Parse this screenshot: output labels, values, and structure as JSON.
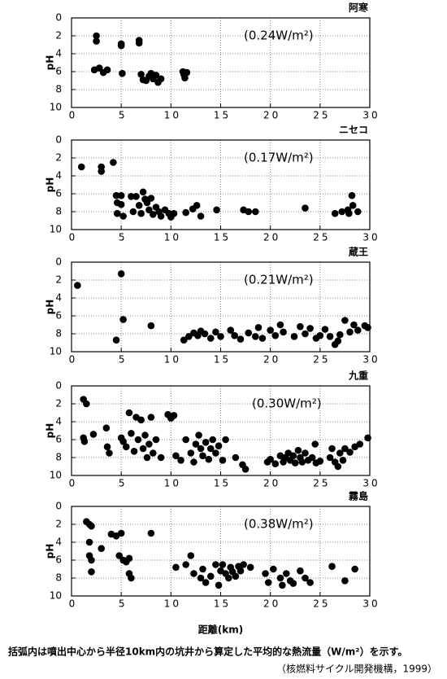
{
  "chart_data": [
    {
      "type": "scatter",
      "title": "阿寒",
      "annotation": "(0.24W/m²)",
      "ylabel": "pH",
      "color": "#000000",
      "grid": true,
      "xlim": [
        0,
        30
      ],
      "xticks": [
        0,
        5,
        10,
        15,
        20,
        25,
        30
      ],
      "ylim": [
        10,
        0
      ],
      "yticks": [
        0,
        2,
        4,
        6,
        8,
        10
      ],
      "x": [
        2.5,
        2.5,
        5,
        5,
        6.8,
        6.8,
        2.3,
        2.8,
        3.2,
        3.6,
        5.1,
        7,
        7.2,
        7.8,
        8,
        8.2,
        8.5,
        8.7,
        7.5,
        9,
        11.2,
        11.3,
        11.4,
        11.6
      ],
      "values": [
        2,
        2.6,
        2.9,
        3.1,
        2.5,
        2.8,
        5.8,
        5.6,
        6.1,
        5.8,
        6.2,
        6.3,
        6.9,
        6.5,
        6.2,
        6.8,
        6.4,
        7.2,
        7,
        6.8,
        6,
        6.3,
        6.7,
        6.1
      ]
    },
    {
      "type": "scatter",
      "title": "ニセコ",
      "annotation": "(0.17W/m²)",
      "ylabel": "pH",
      "color": "#000000",
      "grid": true,
      "xlim": [
        0,
        30
      ],
      "xticks": [
        0,
        5,
        10,
        15,
        20,
        25,
        30
      ],
      "ylim": [
        10,
        0
      ],
      "yticks": [
        0,
        2,
        4,
        6,
        8,
        10
      ],
      "x": [
        1,
        3,
        3,
        4.2,
        4.5,
        4.6,
        4.6,
        5,
        5.2,
        5,
        6,
        6.2,
        6.5,
        6.8,
        7,
        7.2,
        7.4,
        7.6,
        7.8,
        8,
        8.2,
        8.5,
        8.8,
        9,
        9.4,
        9.8,
        10,
        10.3,
        11.5,
        12.2,
        12.6,
        13,
        14.6,
        17.3,
        17.8,
        18.5,
        23.5,
        26.5,
        27.2,
        27.8,
        28.2,
        28.3,
        28.8,
        27.9
      ],
      "values": [
        3,
        3,
        3.5,
        2.5,
        6.2,
        7,
        8.2,
        6.2,
        8.5,
        7.2,
        6.3,
        8,
        6.3,
        7.3,
        8.2,
        5.8,
        6.6,
        7,
        7.8,
        6.5,
        8.3,
        7.5,
        8,
        8.5,
        7.8,
        8.2,
        8.6,
        8.2,
        8.1,
        7.7,
        7.3,
        8.5,
        7.8,
        7.8,
        8,
        8,
        7.6,
        8.2,
        8,
        7.8,
        6.2,
        7.3,
        8,
        8.2
      ]
    },
    {
      "type": "scatter",
      "title": "蔵王",
      "annotation": "(0.21W/m²)",
      "ylabel": "pH",
      "color": "#000000",
      "grid": true,
      "xlim": [
        0,
        30
      ],
      "xticks": [
        0,
        5,
        10,
        15,
        20,
        25,
        30
      ],
      "ylim": [
        10,
        0
      ],
      "yticks": [
        0,
        2,
        4,
        6,
        8,
        10
      ],
      "x": [
        0.6,
        5,
        4.5,
        5.2,
        8,
        11.3,
        11.8,
        12.3,
        12.7,
        13,
        13.4,
        14,
        14.5,
        15,
        16,
        16.4,
        17,
        17.8,
        18.5,
        18.8,
        19.2,
        20,
        20.5,
        21,
        21.3,
        22.4,
        23,
        23.5,
        24,
        24.6,
        25,
        25.5,
        26,
        26.5,
        27,
        27.5,
        28,
        28.4,
        28.8,
        29.5,
        29.8,
        26.8
      ],
      "values": [
        2.6,
        1.3,
        8.7,
        6.4,
        7.1,
        8.7,
        8.3,
        7.9,
        8.2,
        7.7,
        8,
        8.5,
        7.8,
        8.3,
        7.6,
        8.2,
        8.6,
        7.9,
        8.3,
        7.3,
        8.5,
        7.6,
        8.2,
        7,
        7.8,
        8.3,
        7.2,
        8,
        7.4,
        8.5,
        8.2,
        7.5,
        8.3,
        9.2,
        8.1,
        6.5,
        7.8,
        7,
        7.6,
        7.1,
        7.3,
        8.8
      ]
    },
    {
      "type": "scatter",
      "title": "九重",
      "annotation": "(0.30W/m²)",
      "ylabel": "pH",
      "color": "#000000",
      "grid": true,
      "xlim": [
        0,
        30
      ],
      "xticks": [
        0,
        5,
        10,
        15,
        20,
        25,
        30
      ],
      "ylim": [
        10,
        0
      ],
      "yticks": [
        0,
        2,
        4,
        6,
        8,
        10
      ],
      "x": [
        1.2,
        1.5,
        1.2,
        1.3,
        2.2,
        3.5,
        3.6,
        3.8,
        5,
        5.2,
        5.5,
        5.8,
        6,
        6.3,
        6.5,
        6.7,
        7,
        7.2,
        7.4,
        7.6,
        7.8,
        8,
        8.2,
        8.5,
        9,
        9.7,
        10,
        10.3,
        10.5,
        11,
        11.5,
        12,
        12.3,
        12.5,
        12.8,
        13,
        13.2,
        13.5,
        13.8,
        14,
        14.2,
        14.5,
        14.8,
        15.2,
        15.5,
        16.5,
        17.2,
        17.5,
        19.7,
        20,
        20.5,
        21,
        21.3,
        21.5,
        21.8,
        22,
        22.3,
        22.5,
        22.8,
        23,
        23.2,
        23.5,
        23.8,
        24.2,
        24.6,
        25,
        26,
        26.2,
        26.5,
        26.8,
        27,
        27.3,
        27.5,
        28,
        28.5,
        29,
        29.8,
        24.5
      ],
      "values": [
        1.5,
        2,
        5.8,
        6.2,
        5.4,
        4.7,
        6.8,
        7.5,
        5.8,
        6.2,
        6.8,
        3,
        5.3,
        7.3,
        3.5,
        6,
        3.8,
        7,
        5.5,
        8,
        6.5,
        3.5,
        7.5,
        6,
        8,
        3.2,
        3.6,
        3.3,
        7.8,
        8.3,
        6,
        7.5,
        8.5,
        6.5,
        5.5,
        7,
        7.8,
        6.3,
        8.2,
        7,
        6,
        7.5,
        6.7,
        8.3,
        6,
        8,
        8.8,
        9.3,
        8.5,
        8.2,
        8.7,
        7.8,
        8.5,
        8,
        7.5,
        8.3,
        7.8,
        8.6,
        7.2,
        8,
        8.5,
        7.5,
        8.3,
        8,
        8.6,
        8.4,
        8,
        7,
        8.5,
        9,
        7.5,
        8.3,
        7,
        7.4,
        6.8,
        6.5,
        5.8,
        6.5
      ]
    },
    {
      "type": "scatter",
      "title": "霧島",
      "annotation": "(0.38W/m²)",
      "ylabel": "pH",
      "xlabel": "距離(km)",
      "color": "#000000",
      "grid": true,
      "xlim": [
        0,
        30
      ],
      "xticks": [
        0,
        5,
        10,
        15,
        20,
        25,
        30
      ],
      "ylim": [
        10,
        0
      ],
      "yticks": [
        0,
        2,
        4,
        6,
        8,
        10
      ],
      "x": [
        1.5,
        1.8,
        2,
        1.8,
        1.8,
        2,
        2,
        3,
        4,
        4.5,
        5,
        4.8,
        5.2,
        5.5,
        5.8,
        5.8,
        6,
        8,
        10.5,
        11.5,
        12,
        12.3,
        13,
        13.2,
        13.5,
        14,
        14.5,
        14.8,
        15,
        15.2,
        15.5,
        15.8,
        16,
        16.2,
        16.5,
        16.8,
        17,
        17.3,
        18,
        19.5,
        19.8,
        20.3,
        21,
        21.2,
        21.6,
        22,
        22.3,
        23,
        23.5,
        24,
        26.2,
        27.5,
        28.5
      ],
      "values": [
        1.7,
        2,
        2.2,
        4,
        5.5,
        6,
        7.3,
        4.7,
        3.1,
        3.3,
        3,
        5.5,
        6,
        6.2,
        5.8,
        7.5,
        8,
        3,
        6.8,
        6.5,
        5.5,
        7.5,
        8,
        7,
        8.5,
        7.8,
        6.5,
        8.8,
        7.2,
        6.5,
        7.5,
        8,
        6.8,
        7.3,
        7.8,
        6.7,
        7.2,
        6.5,
        6.8,
        7.5,
        8.5,
        7,
        8,
        8.8,
        7.5,
        8.3,
        8.6,
        7.2,
        8,
        8.5,
        6.7,
        8.3,
        7
      ]
    }
  ],
  "notes": [
    "括弧内は噴出中心から半径10km内の坑井から算定した平均的な熱流量（W/m²）を示す。",
    "（核燃料サイクル開発機構，1999）"
  ]
}
